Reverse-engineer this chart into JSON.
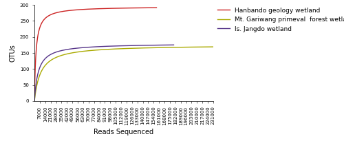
{
  "title": "",
  "xlabel": "Reads Sequenced",
  "ylabel": "OTUs",
  "ylim": [
    0,
    300
  ],
  "xlim": [
    0,
    231000
  ],
  "curves": [
    {
      "label": "Hanbando geology wetland",
      "color": "#cc2222",
      "max_reads": 157649,
      "max_otus": 283,
      "S_max": 295,
      "K": 2000
    },
    {
      "label": "Mt. Gariwang primeval  forest wetland",
      "color": "#aaaa00",
      "max_reads": 236624,
      "max_otus": 169,
      "S_max": 175,
      "K": 8000
    },
    {
      "label": "Is. Jangdo wetland",
      "color": "#553388",
      "max_reads": 179870,
      "max_otus": 168,
      "S_max": 180,
      "K": 5000
    }
  ],
  "xticks": [
    7000,
    14000,
    21000,
    28000,
    35000,
    42000,
    49000,
    56000,
    63000,
    70000,
    77000,
    84000,
    91000,
    98000,
    105000,
    112000,
    119000,
    126000,
    133000,
    140000,
    147000,
    154000,
    161000,
    168000,
    175000,
    182000,
    189000,
    196000,
    203000,
    210000,
    217000,
    224000,
    231000
  ],
  "yticks": [
    0,
    50,
    100,
    150,
    200,
    250,
    300
  ],
  "legend_fontsize": 6.5,
  "axis_label_fontsize": 7,
  "tick_fontsize": 5.0,
  "linewidth": 1.0,
  "background_color": "#ffffff",
  "fig_width": 5.0,
  "fig_height": 2.37,
  "dpi": 100
}
